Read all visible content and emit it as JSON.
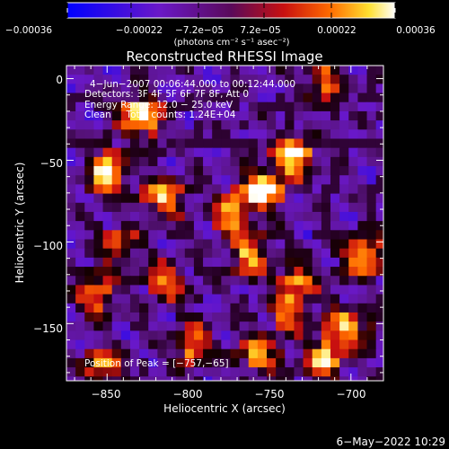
{
  "chart_data": {
    "type": "heatmap",
    "title": "Reconstructed RHESSI Image",
    "xlabel": "Heliocentric X (arcsec)",
    "ylabel": "Heliocentric Y (arcsec)",
    "xlim": [
      -875,
      -680
    ],
    "ylim": [
      -185,
      8
    ],
    "x_ticks": [
      -850,
      -800,
      -750,
      -700
    ],
    "x_tick_labels": [
      "−850",
      "−800",
      "−750",
      "−700"
    ],
    "y_ticks": [
      0,
      -50,
      -100,
      -150
    ],
    "y_tick_labels": [
      "0",
      "−50",
      "−100",
      "−150"
    ],
    "colorbar": {
      "range": [
        -0.00036,
        0.00036
      ],
      "tick_values": [
        -0.00036,
        -0.00022,
        -7.2e-05,
        7.2e-05,
        0.00022,
        0.00036
      ],
      "tick_labels": [
        "−0.00036",
        "−0.00022",
        "−7.2e−05",
        "7.2e−05",
        "0.00022",
        "0.00036"
      ],
      "unit_label": "(photons cm⁻² s⁻¹ asec⁻²)"
    },
    "annotations": [
      "4−Jun−2007 00:06:44.000 to 00:12:44.000",
      "Detectors: 3F 4F 5F 6F 7F 8F, Att 0",
      "Energy Range: 12.0 − 25.0 keV",
      "Clean     Total counts: 1.24E+04",
      "Position of Peak = [−757,−65]"
    ],
    "peak": [
      -757,
      -65
    ],
    "bright_sources": [
      {
        "x": -757,
        "y": -65,
        "level": 0.00036
      },
      {
        "x": -738,
        "y": -45,
        "level": 0.00032
      },
      {
        "x": -832,
        "y": -20,
        "level": 0.00033
      },
      {
        "x": -852,
        "y": -55,
        "level": 0.0003
      },
      {
        "x": -818,
        "y": -70,
        "level": 0.00025
      },
      {
        "x": -776,
        "y": -80,
        "level": 0.00022
      },
      {
        "x": -765,
        "y": -105,
        "level": 0.00022
      },
      {
        "x": -695,
        "y": -105,
        "level": 0.0003
      },
      {
        "x": -705,
        "y": -150,
        "level": 0.00026
      },
      {
        "x": -720,
        "y": -170,
        "level": 0.00024
      },
      {
        "x": -760,
        "y": -165,
        "level": 0.0002
      },
      {
        "x": -800,
        "y": -160,
        "level": 0.0002
      },
      {
        "x": -855,
        "y": -175,
        "level": 0.0002
      },
      {
        "x": -860,
        "y": -130,
        "level": 0.00018
      },
      {
        "x": -815,
        "y": -122,
        "level": 0.00016
      },
      {
        "x": -740,
        "y": -140,
        "level": 0.00018
      },
      {
        "x": -845,
        "y": -100,
        "level": 0.00014
      },
      {
        "x": -720,
        "y": 2,
        "level": 0.00016
      },
      {
        "x": -735,
        "y": -120,
        "level": 0.00014
      }
    ],
    "grid": false
  },
  "footer": {
    "timestamp": "6−May−2022 10:29"
  },
  "colors": {
    "background": "#000000",
    "foreground": "#ffffff",
    "colormap": "blue-purple-red-yellow-white"
  }
}
